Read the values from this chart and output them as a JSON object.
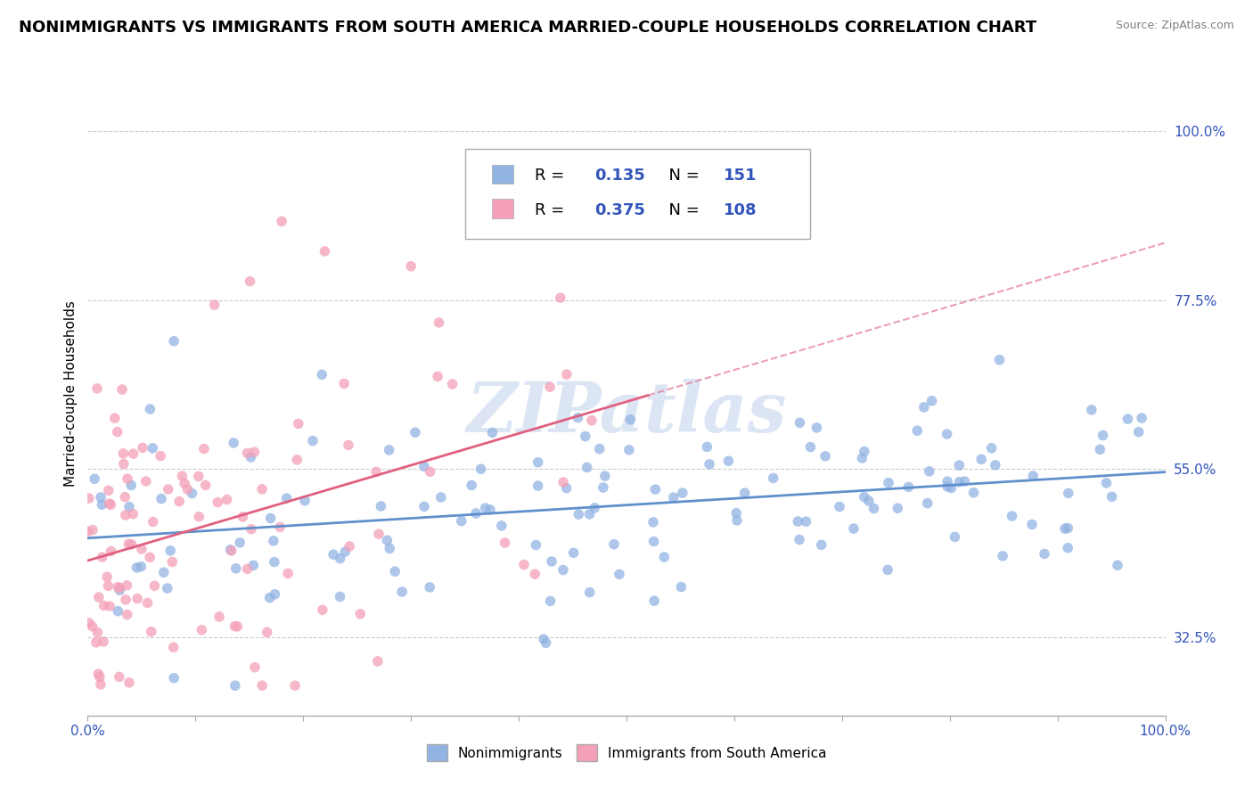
{
  "title": "NONIMMIGRANTS VS IMMIGRANTS FROM SOUTH AMERICA MARRIED-COUPLE HOUSEHOLDS CORRELATION CHART",
  "source": "Source: ZipAtlas.com",
  "ylabel": "Married-couple Households",
  "watermark": "ZIPatlas",
  "blue_label": "Nonimmigrants",
  "pink_label": "Immigrants from South America",
  "blue_R": 0.135,
  "blue_N": 151,
  "pink_R": 0.375,
  "pink_N": 108,
  "blue_color": "#92b4e3",
  "pink_color": "#f4a0b8",
  "blue_line_color": "#6090cc",
  "pink_line_color": "#e06080",
  "xlim": [
    0.0,
    1.0
  ],
  "ylim": [
    0.22,
    1.08
  ],
  "yticks": [
    0.325,
    0.55,
    0.775,
    1.0
  ],
  "ytick_labels": [
    "32.5%",
    "55.0%",
    "77.5%",
    "100.0%"
  ],
  "xticks": [
    0.0,
    0.1,
    0.2,
    0.3,
    0.4,
    0.5,
    0.6,
    0.7,
    0.8,
    0.9,
    1.0
  ],
  "xtick_labels": [
    "0.0%",
    "",
    "",
    "",
    "",
    "",
    "",
    "",
    "",
    "",
    "100.0%"
  ],
  "grid_color": "#cccccc",
  "background_color": "#ffffff",
  "title_fontsize": 13,
  "axis_label_fontsize": 11,
  "tick_fontsize": 11,
  "legend_fontsize": 14,
  "text_color": "#3355bb",
  "legend_R_color": "#3355bb",
  "legend_N_color": "#3355bb"
}
